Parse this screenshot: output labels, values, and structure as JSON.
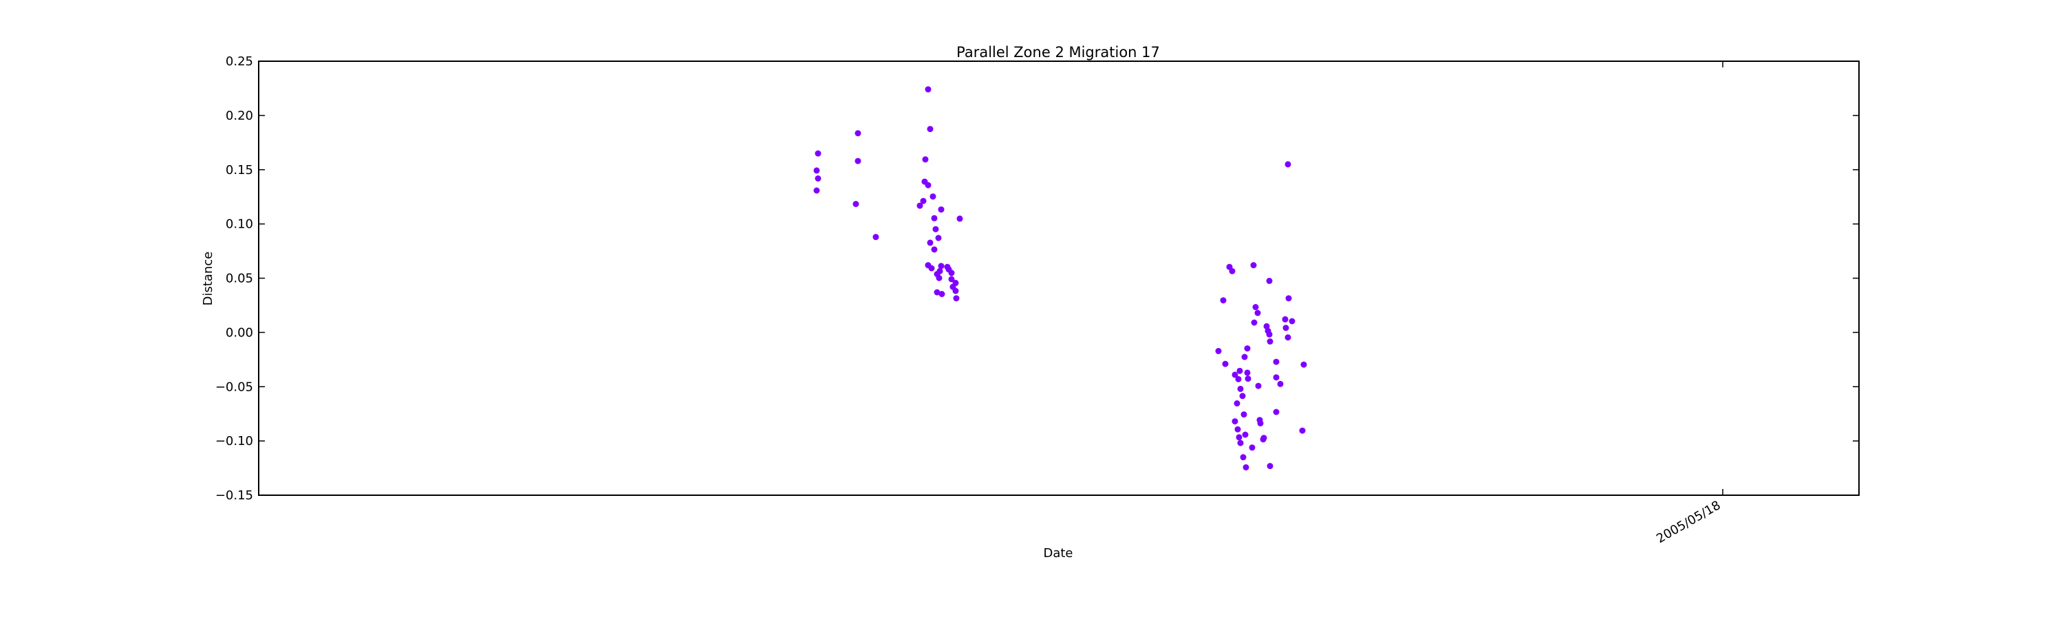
{
  "chart_data": {
    "type": "scatter",
    "title": "Parallel Zone 2 Migration 17",
    "xlabel": "Date",
    "ylabel": "Distance",
    "ylim": [
      -0.15,
      0.25
    ],
    "y_ticks": [
      "0.25",
      "0.20",
      "0.15",
      "0.10",
      "0.05",
      "0.00",
      "−0.05",
      "−0.10",
      "−0.15"
    ],
    "x_ticks": [
      "2005/05/18"
    ],
    "grid": false,
    "color": "#7f00ff",
    "series": [
      {
        "values": [
          [
            0.165,
            0.1493,
            0.1419,
            0.1308,
            0.1836,
            0.158,
            0.1184,
            0.2241,
            0.1875,
            0.1595,
            0.139,
            0.1358,
            0.1253,
            0.1212,
            0.1168,
            0.1133,
            0.1053,
            0.1049,
            0.0952,
            0.088,
            0.0871,
            0.0827,
            0.0765,
            0.062,
            0.0604,
            0.0592,
            0.0581,
            0.0565,
            0.0549,
            0.0612,
            0.0538,
            0.0502,
            0.0491,
            0.0456,
            0.042,
            0.0383,
            0.037,
            0.0354,
            0.0315,
            0.155,
            0.0604,
            0.062,
            0.0565,
            0.0475,
            0.0315,
            0.0296,
            0.0234,
            0.018,
            0.0121,
            0.0104,
            0.0091,
            0.0057,
            0.0042,
            0.0014,
            -0.0018,
            -0.0046,
            -0.0083,
            -0.0147,
            -0.0171,
            -0.0226,
            -0.0271,
            -0.029,
            -0.0296,
            -0.0354,
            -0.0371,
            -0.039,
            -0.0414,
            -0.0426,
            -0.043,
            -0.0475,
            -0.0493,
            -0.052,
            -0.0585,
            -0.0654,
            -0.0733,
            -0.0756,
            -0.0807,
            -0.0819,
            -0.0837,
            -0.0893,
            -0.0905,
            -0.0942,
            -0.0966,
            -0.0972,
            -0.0985,
            -0.1019,
            -0.1061,
            -0.115,
            -0.1231,
            -0.1243
          ]
        ]
      }
    ]
  }
}
